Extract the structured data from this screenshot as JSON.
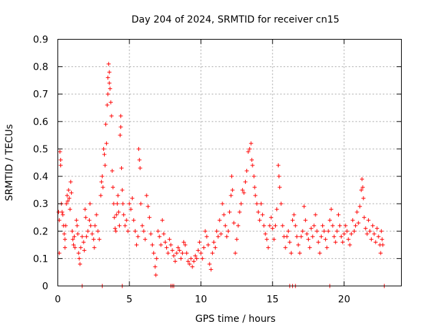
{
  "chart_data": {
    "type": "scatter",
    "title": "Day 204 of 2024, SRMTID for receiver cn15",
    "xlabel": "GPS time / hours",
    "ylabel": "SRMTID / TECUs",
    "xlim": [
      0,
      24
    ],
    "ylim": [
      0,
      0.9
    ],
    "xticks": [
      0,
      5,
      10,
      15,
      20
    ],
    "xtick_labels": [
      "0",
      "5",
      "10",
      "15",
      "20"
    ],
    "yticks": [
      0,
      0.1,
      0.2,
      0.3,
      0.4,
      0.5,
      0.6,
      0.7,
      0.8,
      0.9
    ],
    "ytick_labels": [
      "0",
      "0.1",
      "0.2",
      "0.3",
      "0.4",
      "0.5",
      "0.6",
      "0.7",
      "0.8",
      "0.9"
    ],
    "grid": true,
    "marker": "+",
    "color": "#ff0000",
    "series": [
      {
        "name": "SRMTID",
        "points": [
          [
            0.05,
            0.27
          ],
          [
            0.1,
            0.24
          ],
          [
            0.1,
            0.12
          ],
          [
            0.15,
            0.49
          ],
          [
            0.2,
            0.46
          ],
          [
            0.2,
            0.44
          ],
          [
            0.25,
            0.3
          ],
          [
            0.3,
            0.27
          ],
          [
            0.35,
            0.26
          ],
          [
            0.4,
            0.22
          ],
          [
            0.45,
            0.19
          ],
          [
            0.5,
            0.17
          ],
          [
            0.5,
            0.14
          ],
          [
            0.55,
            0.22
          ],
          [
            0.6,
            0.3
          ],
          [
            0.65,
            0.33
          ],
          [
            0.7,
            0.31
          ],
          [
            0.75,
            0.35
          ],
          [
            0.8,
            0.32
          ],
          [
            0.85,
            0.28
          ],
          [
            0.9,
            0.38
          ],
          [
            0.95,
            0.34
          ],
          [
            1.0,
            0.2
          ],
          [
            1.05,
            0.17
          ],
          [
            1.1,
            0.15
          ],
          [
            1.15,
            0.18
          ],
          [
            1.2,
            0.14
          ],
          [
            1.3,
            0.24
          ],
          [
            1.35,
            0.22
          ],
          [
            1.4,
            0.19
          ],
          [
            1.45,
            0.12
          ],
          [
            1.5,
            0.1
          ],
          [
            1.55,
            0.08
          ],
          [
            1.6,
            0.14
          ],
          [
            1.7,
            0.18
          ],
          [
            1.8,
            0.16
          ],
          [
            1.85,
            0.13
          ],
          [
            1.9,
            0.28
          ],
          [
            1.95,
            0.25
          ],
          [
            2.0,
            0.18
          ],
          [
            2.1,
            0.2
          ],
          [
            2.2,
            0.24
          ],
          [
            2.25,
            0.3
          ],
          [
            2.3,
            0.22
          ],
          [
            2.4,
            0.19
          ],
          [
            2.5,
            0.17
          ],
          [
            2.55,
            0.14
          ],
          [
            2.6,
            0.22
          ],
          [
            2.7,
            0.26
          ],
          [
            2.8,
            0.2
          ],
          [
            2.9,
            0.17
          ],
          [
            3.0,
            0.33
          ],
          [
            3.05,
            0.38
          ],
          [
            3.1,
            0.4
          ],
          [
            3.15,
            0.36
          ],
          [
            3.2,
            0.5
          ],
          [
            3.25,
            0.48
          ],
          [
            3.3,
            0.44
          ],
          [
            3.35,
            0.59
          ],
          [
            3.4,
            0.52
          ],
          [
            3.45,
            0.66
          ],
          [
            3.5,
            0.7
          ],
          [
            3.5,
            0.76
          ],
          [
            3.55,
            0.81
          ],
          [
            3.6,
            0.78
          ],
          [
            3.6,
            0.74
          ],
          [
            3.65,
            0.72
          ],
          [
            3.7,
            0.67
          ],
          [
            3.75,
            0.62
          ],
          [
            3.8,
            0.42
          ],
          [
            3.85,
            0.36
          ],
          [
            3.9,
            0.3
          ],
          [
            3.95,
            0.25
          ],
          [
            4.0,
            0.21
          ],
          [
            4.05,
            0.2
          ],
          [
            4.1,
            0.26
          ],
          [
            4.15,
            0.3
          ],
          [
            4.2,
            0.33
          ],
          [
            4.25,
            0.27
          ],
          [
            4.3,
            0.22
          ],
          [
            4.35,
            0.55
          ],
          [
            4.4,
            0.62
          ],
          [
            4.4,
            0.58
          ],
          [
            4.45,
            0.43
          ],
          [
            4.5,
            0.35
          ],
          [
            4.55,
            0.3
          ],
          [
            4.6,
            0.26
          ],
          [
            4.7,
            0.22
          ],
          [
            4.8,
            0.24
          ],
          [
            4.9,
            0.2
          ],
          [
            5.0,
            0.3
          ],
          [
            5.1,
            0.28
          ],
          [
            5.2,
            0.32
          ],
          [
            5.3,
            0.24
          ],
          [
            5.4,
            0.2
          ],
          [
            5.5,
            0.15
          ],
          [
            5.6,
            0.18
          ],
          [
            5.65,
            0.5
          ],
          [
            5.7,
            0.46
          ],
          [
            5.75,
            0.43
          ],
          [
            5.8,
            0.3
          ],
          [
            5.9,
            0.22
          ],
          [
            6.0,
            0.2
          ],
          [
            6.1,
            0.17
          ],
          [
            6.2,
            0.33
          ],
          [
            6.3,
            0.29
          ],
          [
            6.4,
            0.25
          ],
          [
            6.5,
            0.19
          ],
          [
            6.6,
            0.15
          ],
          [
            6.7,
            0.12
          ],
          [
            6.8,
            0.07
          ],
          [
            6.85,
            0.04
          ],
          [
            6.9,
            0.1
          ],
          [
            7.0,
            0.2
          ],
          [
            7.1,
            0.18
          ],
          [
            7.2,
            0.15
          ],
          [
            7.3,
            0.24
          ],
          [
            7.4,
            0.19
          ],
          [
            7.5,
            0.16
          ],
          [
            7.6,
            0.14
          ],
          [
            7.7,
            0.12
          ],
          [
            7.8,
            0.17
          ],
          [
            7.9,
            0.15
          ],
          [
            8.0,
            0.13
          ],
          [
            8.1,
            0.11
          ],
          [
            8.2,
            0.09
          ],
          [
            8.3,
            0.12
          ],
          [
            8.4,
            0.14
          ],
          [
            8.5,
            0.13
          ],
          [
            8.6,
            0.1
          ],
          [
            8.7,
            0.12
          ],
          [
            8.8,
            0.16
          ],
          [
            8.9,
            0.15
          ],
          [
            9.0,
            0.12
          ],
          [
            9.1,
            0.09
          ],
          [
            9.2,
            0.08
          ],
          [
            9.3,
            0.1
          ],
          [
            9.4,
            0.07
          ],
          [
            9.5,
            0.09
          ],
          [
            9.6,
            0.11
          ],
          [
            9.7,
            0.1
          ],
          [
            9.8,
            0.13
          ],
          [
            9.9,
            0.16
          ],
          [
            10.0,
            0.12
          ],
          [
            10.1,
            0.1
          ],
          [
            10.2,
            0.14
          ],
          [
            10.3,
            0.2
          ],
          [
            10.4,
            0.18
          ],
          [
            10.5,
            0.15
          ],
          [
            10.6,
            0.08
          ],
          [
            10.7,
            0.06
          ],
          [
            10.8,
            0.12
          ],
          [
            10.9,
            0.16
          ],
          [
            11.0,
            0.14
          ],
          [
            11.1,
            0.2
          ],
          [
            11.2,
            0.18
          ],
          [
            11.3,
            0.24
          ],
          [
            11.4,
            0.19
          ],
          [
            11.5,
            0.3
          ],
          [
            11.6,
            0.26
          ],
          [
            11.7,
            0.22
          ],
          [
            11.8,
            0.18
          ],
          [
            11.9,
            0.2
          ],
          [
            12.0,
            0.27
          ],
          [
            12.1,
            0.33
          ],
          [
            12.15,
            0.4
          ],
          [
            12.2,
            0.35
          ],
          [
            12.3,
            0.23
          ],
          [
            12.4,
            0.12
          ],
          [
            12.5,
            0.17
          ],
          [
            12.6,
            0.22
          ],
          [
            12.7,
            0.27
          ],
          [
            12.8,
            0.3
          ],
          [
            12.9,
            0.35
          ],
          [
            13.0,
            0.34
          ],
          [
            13.1,
            0.38
          ],
          [
            13.2,
            0.42
          ],
          [
            13.3,
            0.49
          ],
          [
            13.4,
            0.5
          ],
          [
            13.5,
            0.52
          ],
          [
            13.55,
            0.46
          ],
          [
            13.6,
            0.44
          ],
          [
            13.7,
            0.4
          ],
          [
            13.75,
            0.36
          ],
          [
            13.8,
            0.33
          ],
          [
            13.9,
            0.3
          ],
          [
            14.0,
            0.27
          ],
          [
            14.1,
            0.24
          ],
          [
            14.2,
            0.3
          ],
          [
            14.3,
            0.26
          ],
          [
            14.4,
            0.22
          ],
          [
            14.5,
            0.19
          ],
          [
            14.6,
            0.17
          ],
          [
            14.7,
            0.14
          ],
          [
            14.8,
            0.22
          ],
          [
            14.9,
            0.25
          ],
          [
            15.0,
            0.21
          ],
          [
            15.1,
            0.17
          ],
          [
            15.2,
            0.22
          ],
          [
            15.3,
            0.28
          ],
          [
            15.4,
            0.44
          ],
          [
            15.45,
            0.4
          ],
          [
            15.5,
            0.36
          ],
          [
            15.6,
            0.3
          ],
          [
            15.7,
            0.22
          ],
          [
            15.8,
            0.18
          ],
          [
            15.9,
            0.14
          ],
          [
            16.0,
            0.18
          ],
          [
            16.1,
            0.2
          ],
          [
            16.2,
            0.16
          ],
          [
            16.3,
            0.12
          ],
          [
            16.4,
            0.24
          ],
          [
            16.5,
            0.26
          ],
          [
            16.6,
            0.22
          ],
          [
            16.7,
            0.18
          ],
          [
            16.8,
            0.15
          ],
          [
            16.9,
            0.12
          ],
          [
            17.0,
            0.18
          ],
          [
            17.1,
            0.2
          ],
          [
            17.2,
            0.29
          ],
          [
            17.3,
            0.24
          ],
          [
            17.4,
            0.19
          ],
          [
            17.5,
            0.17
          ],
          [
            17.6,
            0.14
          ],
          [
            17.7,
            0.21
          ],
          [
            17.8,
            0.18
          ],
          [
            17.9,
            0.22
          ],
          [
            18.0,
            0.26
          ],
          [
            18.1,
            0.2
          ],
          [
            18.2,
            0.16
          ],
          [
            18.3,
            0.12
          ],
          [
            18.4,
            0.18
          ],
          [
            18.5,
            0.22
          ],
          [
            18.6,
            0.2
          ],
          [
            18.7,
            0.17
          ],
          [
            18.8,
            0.14
          ],
          [
            18.9,
            0.2
          ],
          [
            19.0,
            0.24
          ],
          [
            19.1,
            0.28
          ],
          [
            19.2,
            0.22
          ],
          [
            19.3,
            0.18
          ],
          [
            19.4,
            0.16
          ],
          [
            19.5,
            0.2
          ],
          [
            19.6,
            0.26
          ],
          [
            19.7,
            0.22
          ],
          [
            19.8,
            0.18
          ],
          [
            19.9,
            0.16
          ],
          [
            20.0,
            0.19
          ],
          [
            20.1,
            0.22
          ],
          [
            20.2,
            0.2
          ],
          [
            20.3,
            0.17
          ],
          [
            20.4,
            0.15
          ],
          [
            20.5,
            0.19
          ],
          [
            20.6,
            0.24
          ],
          [
            20.7,
            0.2
          ],
          [
            20.8,
            0.22
          ],
          [
            20.9,
            0.27
          ],
          [
            21.0,
            0.23
          ],
          [
            21.1,
            0.29
          ],
          [
            21.2,
            0.35
          ],
          [
            21.25,
            0.39
          ],
          [
            21.3,
            0.36
          ],
          [
            21.35,
            0.32
          ],
          [
            21.4,
            0.25
          ],
          [
            21.5,
            0.21
          ],
          [
            21.6,
            0.19
          ],
          [
            21.7,
            0.24
          ],
          [
            21.8,
            0.2
          ],
          [
            21.9,
            0.17
          ],
          [
            22.0,
            0.22
          ],
          [
            22.1,
            0.19
          ],
          [
            22.2,
            0.16
          ],
          [
            22.3,
            0.21
          ],
          [
            22.4,
            0.18
          ],
          [
            22.5,
            0.15
          ],
          [
            22.55,
            0.12
          ],
          [
            22.6,
            0.2
          ],
          [
            22.65,
            0.17
          ],
          [
            22.7,
            0.15
          ],
          [
            1.7,
            0.0
          ],
          [
            3.1,
            0.0
          ],
          [
            4.5,
            0.0
          ],
          [
            7.9,
            0.0
          ],
          [
            8.0,
            0.0
          ],
          [
            8.1,
            0.0
          ],
          [
            16.2,
            0.0
          ],
          [
            16.4,
            0.0
          ],
          [
            16.6,
            0.0
          ],
          [
            19.0,
            0.0
          ],
          [
            22.8,
            0.0
          ]
        ]
      }
    ]
  }
}
